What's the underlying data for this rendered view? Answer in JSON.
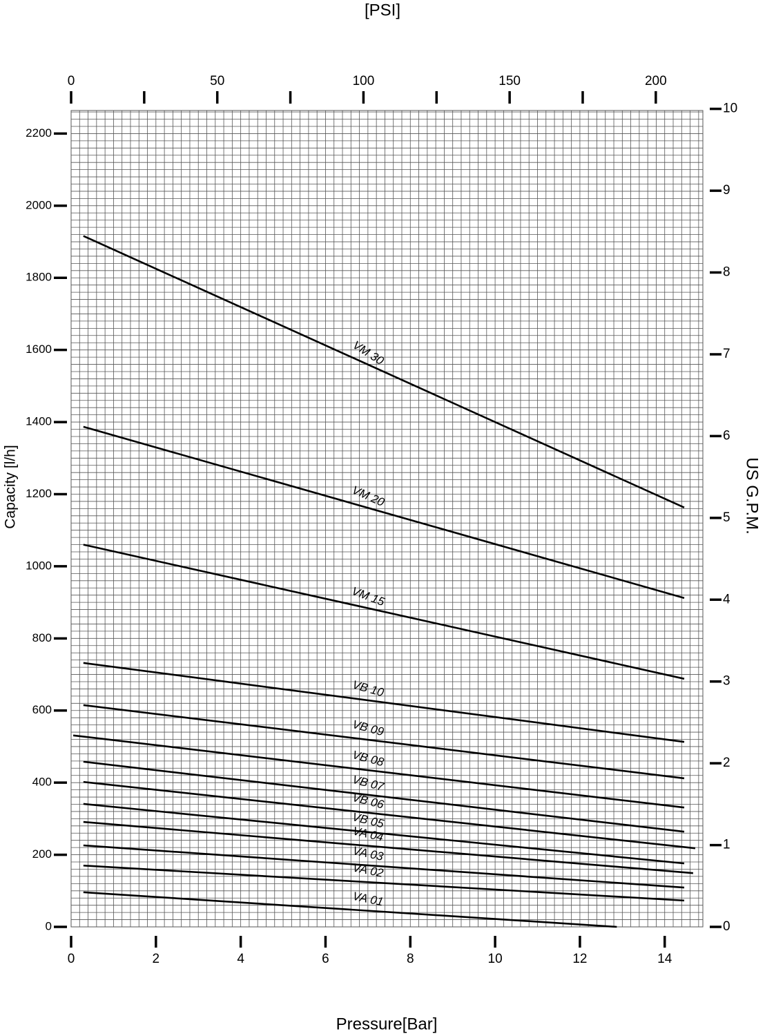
{
  "chart_data": {
    "type": "line",
    "x_label": "Pressure[Bar]",
    "x2_label": "[PSI]",
    "y_label": "Capacity   [l/h]",
    "y2_label": "US  G.P.M.",
    "xlim": [
      0,
      14.9
    ],
    "xticks": [
      0,
      2,
      4,
      6,
      8,
      10,
      12,
      14
    ],
    "x2lim": [
      0,
      216.1
    ],
    "x2ticks": [
      0,
      50,
      100,
      150,
      200
    ],
    "x2minor_ticks": [
      25,
      75,
      125,
      175
    ],
    "ylim": [
      0,
      2264
    ],
    "yticks": [
      0,
      200,
      400,
      600,
      800,
      1000,
      1200,
      1400,
      1600,
      1800,
      2000,
      2200
    ],
    "y2lim": [
      0,
      9.98
    ],
    "y2ticks": [
      0,
      1,
      2,
      3,
      4,
      5,
      6,
      7,
      8,
      9,
      10
    ],
    "grid": true,
    "x_grid_step": 0.2,
    "y_grid_step": 20,
    "grid_color": "#555555",
    "series": [
      {
        "name": "VM 30",
        "color": "#000000",
        "x": [
          0.29,
          14.46
        ],
        "values": [
          1916,
          1163
        ]
      },
      {
        "name": "VM 20",
        "color": "#000000",
        "x": [
          0.29,
          14.46
        ],
        "values": [
          1387,
          912
        ]
      },
      {
        "name": "VM 15",
        "color": "#000000",
        "x": [
          0.29,
          14.46
        ],
        "values": [
          1060,
          688
        ]
      },
      {
        "name": "VB 10",
        "color": "#000000",
        "x": [
          0.29,
          14.46
        ],
        "values": [
          732,
          513
        ]
      },
      {
        "name": "VB 09",
        "color": "#000000",
        "x": [
          0.29,
          14.46
        ],
        "values": [
          615,
          412
        ]
      },
      {
        "name": "VB 08",
        "color": "#000000",
        "x": [
          0.05,
          14.46
        ],
        "values": [
          531,
          331
        ]
      },
      {
        "name": "VB 07",
        "color": "#000000",
        "x": [
          0.29,
          14.46
        ],
        "values": [
          458,
          264
        ]
      },
      {
        "name": "VB 06",
        "color": "#000000",
        "x": [
          0.29,
          14.72
        ],
        "values": [
          402,
          218
        ]
      },
      {
        "name": "VB 05",
        "color": "#000000",
        "x": [
          0.29,
          14.46
        ],
        "values": [
          341,
          176
        ]
      },
      {
        "name": "VA 04",
        "color": "#000000",
        "x": [
          0.29,
          14.67
        ],
        "values": [
          291,
          149
        ]
      },
      {
        "name": "VA 03",
        "color": "#000000",
        "x": [
          0.29,
          14.46
        ],
        "values": [
          226,
          109
        ]
      },
      {
        "name": "VA 02",
        "color": "#000000",
        "x": [
          0.29,
          14.46
        ],
        "values": [
          170,
          73
        ]
      },
      {
        "name": "VA 01",
        "color": "#000000",
        "x": [
          0.29,
          12.87
        ],
        "values": [
          96,
          0
        ]
      }
    ]
  }
}
